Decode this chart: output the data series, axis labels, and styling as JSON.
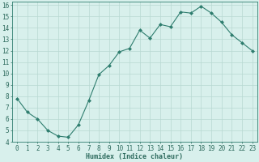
{
  "x": [
    0,
    1,
    2,
    3,
    4,
    5,
    6,
    7,
    8,
    9,
    10,
    11,
    12,
    13,
    14,
    15,
    16,
    17,
    18,
    19,
    20,
    21,
    22,
    23
  ],
  "y": [
    7.8,
    6.6,
    6.0,
    5.0,
    4.5,
    4.4,
    5.5,
    7.6,
    9.9,
    10.7,
    11.9,
    12.2,
    13.8,
    13.1,
    14.3,
    14.1,
    15.4,
    15.3,
    15.9,
    15.3,
    14.5,
    13.4,
    12.7,
    12.0
  ],
  "line_color": "#2e7d6e",
  "marker": "D",
  "marker_size": 2,
  "bg_color": "#d8f0ec",
  "grid_color": "#b8d8d2",
  "xlabel": "Humidex (Indice chaleur)",
  "xlim": [
    -0.5,
    23.5
  ],
  "ylim": [
    4,
    16.3
  ],
  "yticks": [
    4,
    5,
    6,
    7,
    8,
    9,
    10,
    11,
    12,
    13,
    14,
    15,
    16
  ],
  "xticks": [
    0,
    1,
    2,
    3,
    4,
    5,
    6,
    7,
    8,
    9,
    10,
    11,
    12,
    13,
    14,
    15,
    16,
    17,
    18,
    19,
    20,
    21,
    22,
    23
  ],
  "tick_label_color": "#2e6b5e",
  "axis_color": "#2e7d6e",
  "label_fontsize": 6,
  "tick_fontsize": 5.5,
  "linewidth": 0.8
}
